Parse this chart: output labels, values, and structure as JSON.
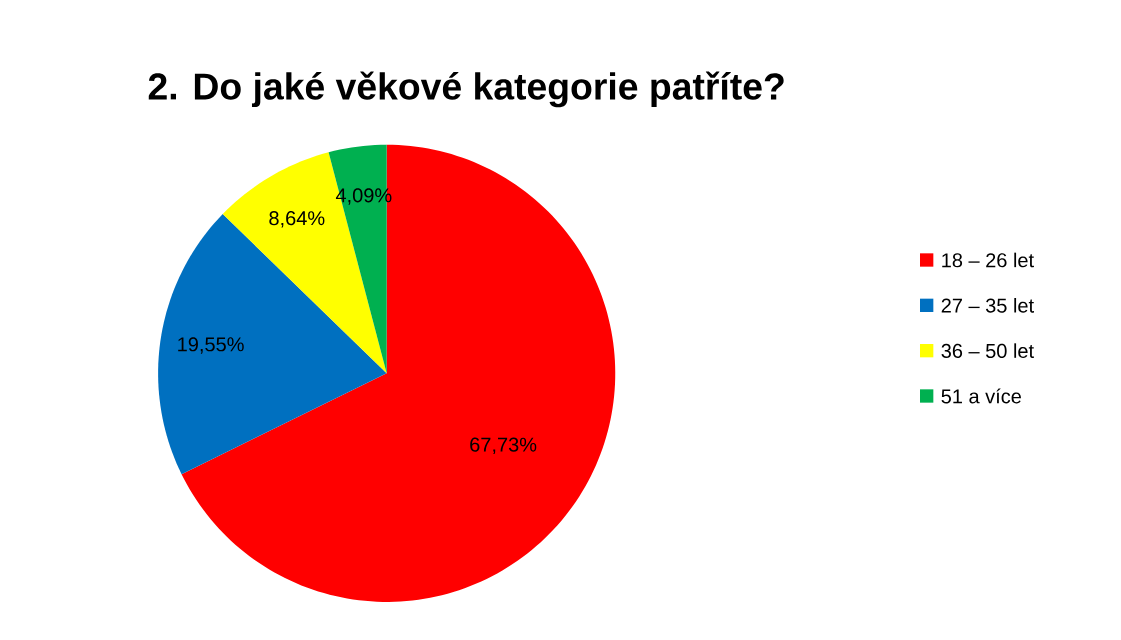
{
  "chart_data": {
    "type": "pie",
    "title": "2. Do jaké věkové kategorie patříte?",
    "categories": [
      "18 – 26 let",
      "27 – 35 let",
      "36 – 50 let",
      "51 a více"
    ],
    "values": [
      67.73,
      19.55,
      8.64,
      4.09
    ],
    "colors": [
      "#ff0000",
      "#0070c0",
      "#ffff00",
      "#00b050"
    ],
    "value_labels": [
      "67,73%",
      "19,55%",
      "8,64%",
      "4,09%"
    ],
    "legend": "right"
  }
}
